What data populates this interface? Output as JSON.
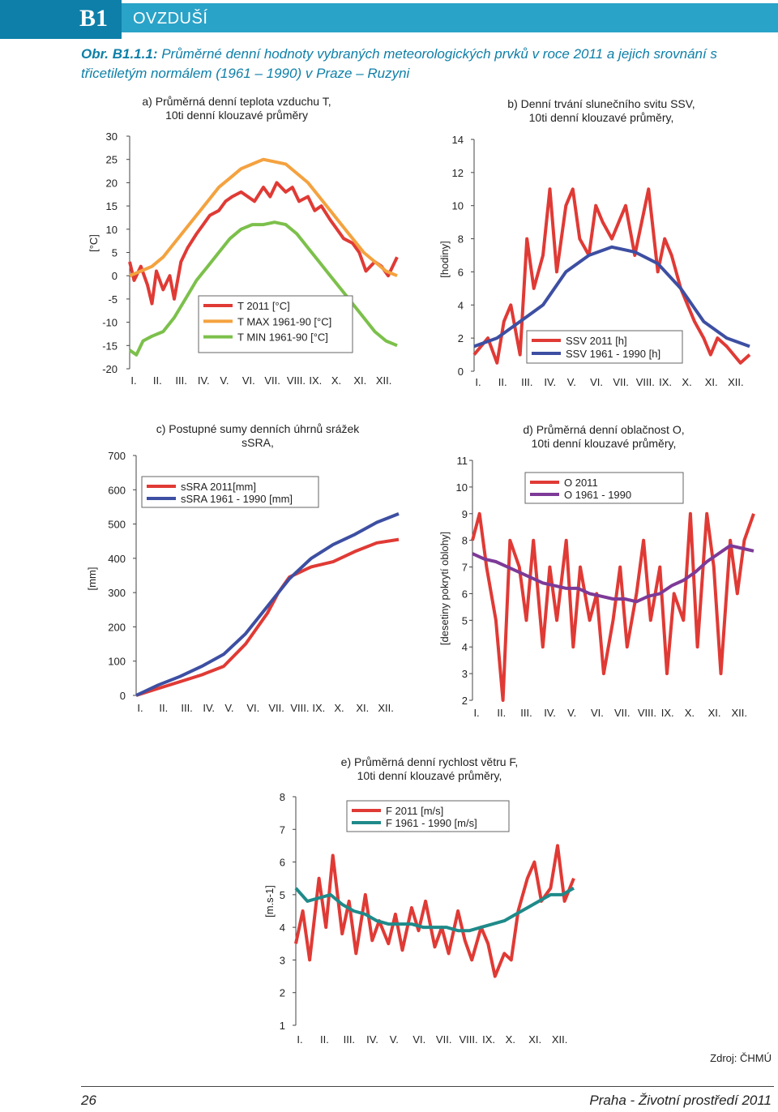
{
  "header": {
    "badge": "B1",
    "section": "OVZDUŠÍ",
    "caption_label": "Obr. B1.1.1:",
    "caption_text": "Průměrné denní hodnoty vybraných meteorologických prvků v roce 2011 a jejich srovnání s třicetiletým normálem (1961 – 1990) v Praze – Ruzyni"
  },
  "footer": {
    "page_number": "26",
    "publication": "Praha - Životní prostředí 2011",
    "source": "Zdroj: ČHMÚ"
  },
  "colors": {
    "red": "#e03a35",
    "blue": "#3d4fa2",
    "orange": "#f4a23f",
    "green": "#7cc04b",
    "purple": "#7d3a97",
    "teal": "#1f8a8a",
    "accent": "#0e7fa8",
    "band": "#2aa3c8"
  },
  "chart_data": [
    {
      "id": "a",
      "type": "line",
      "title_line1": "a) Průměrná denní teplota vzduchu T,",
      "title_line2": "10ti denní klouzavé průměry",
      "ylabel": "[°C]",
      "ylim": [
        -20,
        30
      ],
      "yticks": [
        "30",
        "25",
        "20",
        "15",
        "10",
        "5",
        "0",
        "-5",
        "-10",
        "-15",
        "-20"
      ],
      "categories": [
        "I.",
        "II.",
        "III.",
        "IV.",
        "V.",
        "VI.",
        "VII.",
        "VIII.",
        "IX.",
        "X.",
        "XI.",
        "XII."
      ],
      "legend": [
        "T 2011 [°C]",
        "T MAX 1961-90 [°C]",
        "T MIN 1961-90 [°C]"
      ],
      "series": [
        {
          "name": "T 2011 [°C]",
          "color": "red",
          "x": [
            0,
            0.2,
            0.5,
            0.8,
            1.0,
            1.2,
            1.5,
            1.8,
            2.0,
            2.3,
            2.6,
            3.0,
            3.3,
            3.6,
            4.0,
            4.3,
            4.6,
            5.0,
            5.3,
            5.6,
            6.0,
            6.3,
            6.6,
            7.0,
            7.3,
            7.6,
            8.0,
            8.3,
            8.6,
            9.0,
            9.3,
            9.6,
            10.0,
            10.3,
            10.6,
            11.0,
            11.3,
            11.6,
            12.0
          ],
          "values": [
            3,
            -1,
            2,
            -2,
            -6,
            1,
            -3,
            0,
            -5,
            3,
            6,
            9,
            11,
            13,
            14,
            16,
            17,
            18,
            17,
            16,
            19,
            17,
            20,
            18,
            19,
            16,
            17,
            14,
            15,
            12,
            10,
            8,
            7,
            5,
            1,
            3,
            2,
            0,
            4
          ]
        },
        {
          "name": "T MAX 1961-90 [°C]",
          "color": "orange",
          "x": [
            0,
            0.5,
            1.0,
            1.5,
            2.0,
            2.5,
            3.0,
            3.5,
            4.0,
            4.5,
            5.0,
            5.5,
            6.0,
            6.5,
            7.0,
            7.5,
            8.0,
            8.5,
            9.0,
            9.5,
            10.0,
            10.5,
            11.0,
            11.5,
            12.0
          ],
          "values": [
            0,
            1,
            2,
            4,
            7,
            10,
            13,
            16,
            19,
            21,
            23,
            24,
            25,
            24.5,
            24,
            22,
            20,
            17,
            14,
            11,
            8,
            5,
            3,
            1,
            0
          ]
        },
        {
          "name": "T MIN 1961-90 [°C]",
          "color": "green",
          "x": [
            0,
            0.3,
            0.6,
            1.0,
            1.5,
            2.0,
            2.5,
            3.0,
            3.5,
            4.0,
            4.5,
            5.0,
            5.5,
            6.0,
            6.5,
            7.0,
            7.5,
            8.0,
            8.5,
            9.0,
            9.5,
            10.0,
            10.5,
            11.0,
            11.5,
            12.0
          ],
          "values": [
            -16,
            -17,
            -14,
            -13,
            -12,
            -9,
            -5,
            -1,
            2,
            5,
            8,
            10,
            11,
            11,
            11.5,
            11,
            9,
            6,
            3,
            0,
            -3,
            -6,
            -9,
            -12,
            -14,
            -15
          ]
        }
      ]
    },
    {
      "id": "b",
      "type": "line",
      "title_line1": "b) Denní trvání slunečního svitu SSV,",
      "title_line2": "10ti denní klouzavé průměry,",
      "ylabel": "[hodiny]",
      "ylim": [
        0,
        14
      ],
      "yticks": [
        "14",
        "12",
        "10",
        "8",
        "6",
        "4",
        "2",
        "0"
      ],
      "categories": [
        "I.",
        "II.",
        "III.",
        "IV.",
        "V.",
        "VI.",
        "VII.",
        "VIII.",
        "IX.",
        "X.",
        "XI.",
        "XII."
      ],
      "legend": [
        "SSV 2011 [h]",
        "SSV 1961 - 1990 [h]"
      ],
      "series": [
        {
          "name": "SSV 2011 [h]",
          "color": "red",
          "x": [
            0,
            0.3,
            0.6,
            1.0,
            1.3,
            1.6,
            2.0,
            2.3,
            2.6,
            3.0,
            3.3,
            3.6,
            4.0,
            4.3,
            4.6,
            5.0,
            5.3,
            5.6,
            6.0,
            6.3,
            6.6,
            7.0,
            7.3,
            7.6,
            8.0,
            8.3,
            8.6,
            9.0,
            9.3,
            9.6,
            10.0,
            10.3,
            10.6,
            11.0,
            11.3,
            11.6,
            12.0
          ],
          "values": [
            1,
            1.5,
            2,
            0.5,
            3,
            4,
            1,
            8,
            5,
            7,
            11,
            6,
            10,
            11,
            8,
            7,
            10,
            9,
            8,
            9,
            10,
            7,
            9,
            11,
            6,
            8,
            7,
            5,
            4,
            3,
            2,
            1,
            2,
            1.5,
            1,
            0.5,
            1
          ]
        },
        {
          "name": "SSV 1961 - 1990 [h]",
          "color": "blue",
          "x": [
            0,
            1,
            2,
            3,
            4,
            5,
            6,
            7,
            8,
            9,
            10,
            11,
            12
          ],
          "values": [
            1.5,
            2,
            3,
            4,
            6,
            7,
            7.5,
            7.2,
            6.5,
            5,
            3,
            2,
            1.5
          ]
        }
      ]
    },
    {
      "id": "c",
      "type": "line",
      "title_line1": "c) Postupné sumy denních úhrnů srážek",
      "title_line2": "sSRA,",
      "ylabel": "[mm]",
      "ylim": [
        0,
        700
      ],
      "yticks": [
        "700",
        "600",
        "500",
        "400",
        "300",
        "200",
        "100",
        "0"
      ],
      "categories": [
        "I.",
        "II.",
        "III.",
        "IV.",
        "V.",
        "VI.",
        "VII.",
        "VIII.",
        "IX.",
        "X.",
        "XI.",
        "XII."
      ],
      "legend": [
        "sSRA 2011[mm]",
        "sSRA 1961 - 1990 [mm]"
      ],
      "series": [
        {
          "name": "sSRA 2011[mm]",
          "color": "red",
          "x": [
            0,
            1,
            2,
            3,
            4,
            5,
            6,
            6.5,
            7,
            8,
            9,
            10,
            11,
            12
          ],
          "values": [
            0,
            20,
            40,
            60,
            85,
            150,
            240,
            300,
            345,
            375,
            390,
            420,
            445,
            455
          ]
        },
        {
          "name": "sSRA 1961 - 1990 [mm]",
          "color": "blue",
          "x": [
            0,
            1,
            2,
            3,
            4,
            5,
            6,
            7,
            8,
            9,
            10,
            11,
            12
          ],
          "values": [
            0,
            30,
            55,
            85,
            120,
            180,
            260,
            340,
            400,
            440,
            470,
            505,
            530
          ]
        }
      ]
    },
    {
      "id": "d",
      "type": "line",
      "title_line1": "d) Průměrná denní oblačnost O,",
      "title_line2": "10ti denní klouzavé průměry,",
      "ylabel": "[desetiny pokrytí oblohy]",
      "ylim": [
        2,
        11
      ],
      "yticks": [
        "11",
        "10",
        "9",
        "8",
        "7",
        "6",
        "5",
        "4",
        "3",
        "2"
      ],
      "categories": [
        "I.",
        "II.",
        "III.",
        "IV.",
        "V.",
        "VI.",
        "VII.",
        "VIII.",
        "IX.",
        "X.",
        "XI.",
        "XII."
      ],
      "legend": [
        "O 2011",
        "O 1961 - 1990"
      ],
      "series": [
        {
          "name": "O 2011",
          "color": "red",
          "x": [
            0,
            0.3,
            0.6,
            1.0,
            1.3,
            1.6,
            2.0,
            2.3,
            2.6,
            3.0,
            3.3,
            3.6,
            4.0,
            4.3,
            4.6,
            5.0,
            5.3,
            5.6,
            6.0,
            6.3,
            6.6,
            7.0,
            7.3,
            7.6,
            8.0,
            8.3,
            8.6,
            9.0,
            9.3,
            9.6,
            10.0,
            10.3,
            10.6,
            11.0,
            11.3,
            11.6,
            12.0
          ],
          "values": [
            8,
            9,
            7,
            5,
            2,
            8,
            7,
            5,
            8,
            4,
            7,
            5,
            8,
            4,
            7,
            5,
            6,
            3,
            5,
            7,
            4,
            6,
            8,
            5,
            7,
            3,
            6,
            5,
            9,
            4,
            9,
            7,
            3,
            8,
            6,
            8,
            9
          ]
        },
        {
          "name": "O 1961 - 1990",
          "color": "purple",
          "x": [
            0,
            0.5,
            1,
            1.5,
            2,
            2.5,
            3,
            3.5,
            4,
            4.5,
            5,
            5.5,
            6,
            6.5,
            7,
            7.5,
            8,
            8.5,
            9,
            9.5,
            10,
            10.5,
            11,
            11.5,
            12
          ],
          "values": [
            7.5,
            7.3,
            7.2,
            7.0,
            6.8,
            6.6,
            6.4,
            6.3,
            6.2,
            6.2,
            6.0,
            5.9,
            5.8,
            5.8,
            5.7,
            5.9,
            6.0,
            6.3,
            6.5,
            6.8,
            7.2,
            7.5,
            7.8,
            7.7,
            7.6
          ]
        }
      ]
    },
    {
      "id": "e",
      "type": "line",
      "title_line1": "e) Průměrná denní rychlost větru F,",
      "title_line2": "10ti denní klouzavé průměry,",
      "ylabel": "[m.s-1]",
      "ylim": [
        1,
        8
      ],
      "yticks": [
        "8",
        "7",
        "6",
        "5",
        "4",
        "3",
        "2",
        "1"
      ],
      "categories": [
        "I.",
        "II.",
        "III.",
        "IV.",
        "V.",
        "VI.",
        "VII.",
        "VIII.",
        "IX.",
        "X.",
        "XI.",
        "XII."
      ],
      "legend": [
        "F 2011 [m/s]",
        "F 1961 - 1990 [m/s]"
      ],
      "series": [
        {
          "name": "F 2011 [m/s]",
          "color": "red",
          "x": [
            0,
            0.3,
            0.6,
            1.0,
            1.3,
            1.6,
            2.0,
            2.3,
            2.6,
            3.0,
            3.3,
            3.6,
            4.0,
            4.3,
            4.6,
            5.0,
            5.3,
            5.6,
            6.0,
            6.3,
            6.6,
            7.0,
            7.3,
            7.6,
            8.0,
            8.3,
            8.6,
            9.0,
            9.3,
            9.6,
            10.0,
            10.3,
            10.6,
            11.0,
            11.3,
            11.6,
            12.0
          ],
          "values": [
            3.5,
            4.5,
            3,
            5.5,
            4,
            6.2,
            3.8,
            4.8,
            3.2,
            5,
            3.6,
            4.2,
            3.5,
            4.4,
            3.3,
            4.6,
            3.9,
            4.8,
            3.4,
            4.0,
            3.2,
            4.5,
            3.6,
            3.0,
            4.0,
            3.5,
            2.5,
            3.2,
            3.0,
            4.5,
            5.5,
            6.0,
            4.8,
            5.2,
            6.5,
            4.8,
            5.5
          ]
        },
        {
          "name": "F 1961 - 1990 [m/s]",
          "color": "teal",
          "x": [
            0,
            0.5,
            1,
            1.5,
            2,
            2.5,
            3,
            3.5,
            4,
            4.5,
            5,
            5.5,
            6,
            6.5,
            7,
            7.5,
            8,
            8.5,
            9,
            9.5,
            10,
            10.5,
            11,
            11.5,
            12
          ],
          "values": [
            5.2,
            4.8,
            4.9,
            5.0,
            4.7,
            4.5,
            4.4,
            4.2,
            4.1,
            4.1,
            4.1,
            4.0,
            4.0,
            4.0,
            3.9,
            3.9,
            4.0,
            4.1,
            4.2,
            4.4,
            4.6,
            4.8,
            5.0,
            5.0,
            5.2
          ]
        }
      ]
    }
  ]
}
